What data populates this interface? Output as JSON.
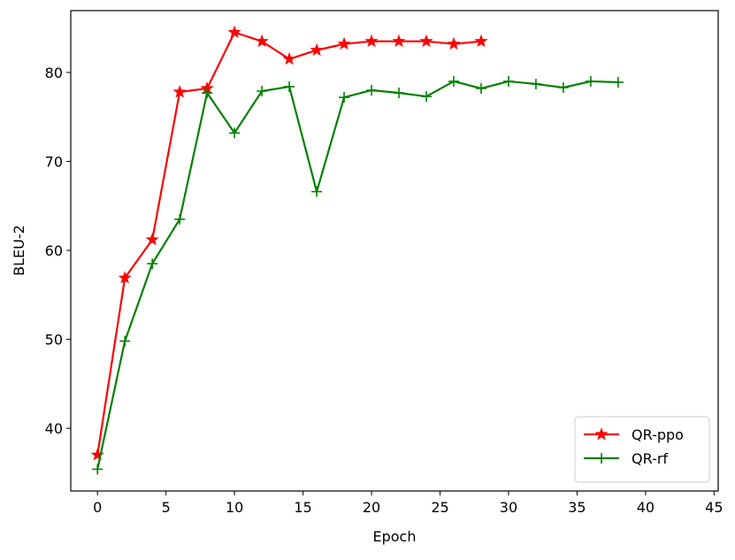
{
  "chart_data": {
    "type": "line",
    "x_label": "Epoch",
    "y_label": "BLEU-2",
    "series": [
      {
        "name": "QR-ppo",
        "color": "#ff0000",
        "marker": "star",
        "x": [
          0,
          2,
          4,
          6,
          8,
          10,
          12,
          14,
          16,
          18,
          20,
          22,
          24,
          26,
          28
        ],
        "values": [
          37.0,
          56.9,
          61.2,
          77.8,
          78.2,
          84.5,
          83.5,
          81.5,
          82.5,
          83.2,
          83.5,
          83.5,
          83.5,
          83.2,
          83.5
        ]
      },
      {
        "name": "QR-rf",
        "color": "#008000",
        "marker": "plus",
        "x": [
          0,
          2,
          4,
          6,
          8,
          10,
          12,
          14,
          16,
          18,
          20,
          22,
          24,
          26,
          28,
          30,
          32,
          34,
          36,
          38
        ],
        "values": [
          35.4,
          49.8,
          58.5,
          63.5,
          77.7,
          73.2,
          77.9,
          78.4,
          66.6,
          77.2,
          78.0,
          77.7,
          77.3,
          79.0,
          78.2,
          79.0,
          78.7,
          78.3,
          79.0,
          78.9
        ]
      }
    ],
    "xlim": [
      -1.95,
      45.3
    ],
    "xticks": [
      0,
      5,
      10,
      15,
      20,
      25,
      30,
      35,
      40,
      45
    ],
    "ylim": [
      32.95,
      86.95
    ],
    "yticks": [
      40,
      50,
      60,
      70,
      80
    ],
    "grid": false,
    "legend": "lower-right"
  }
}
